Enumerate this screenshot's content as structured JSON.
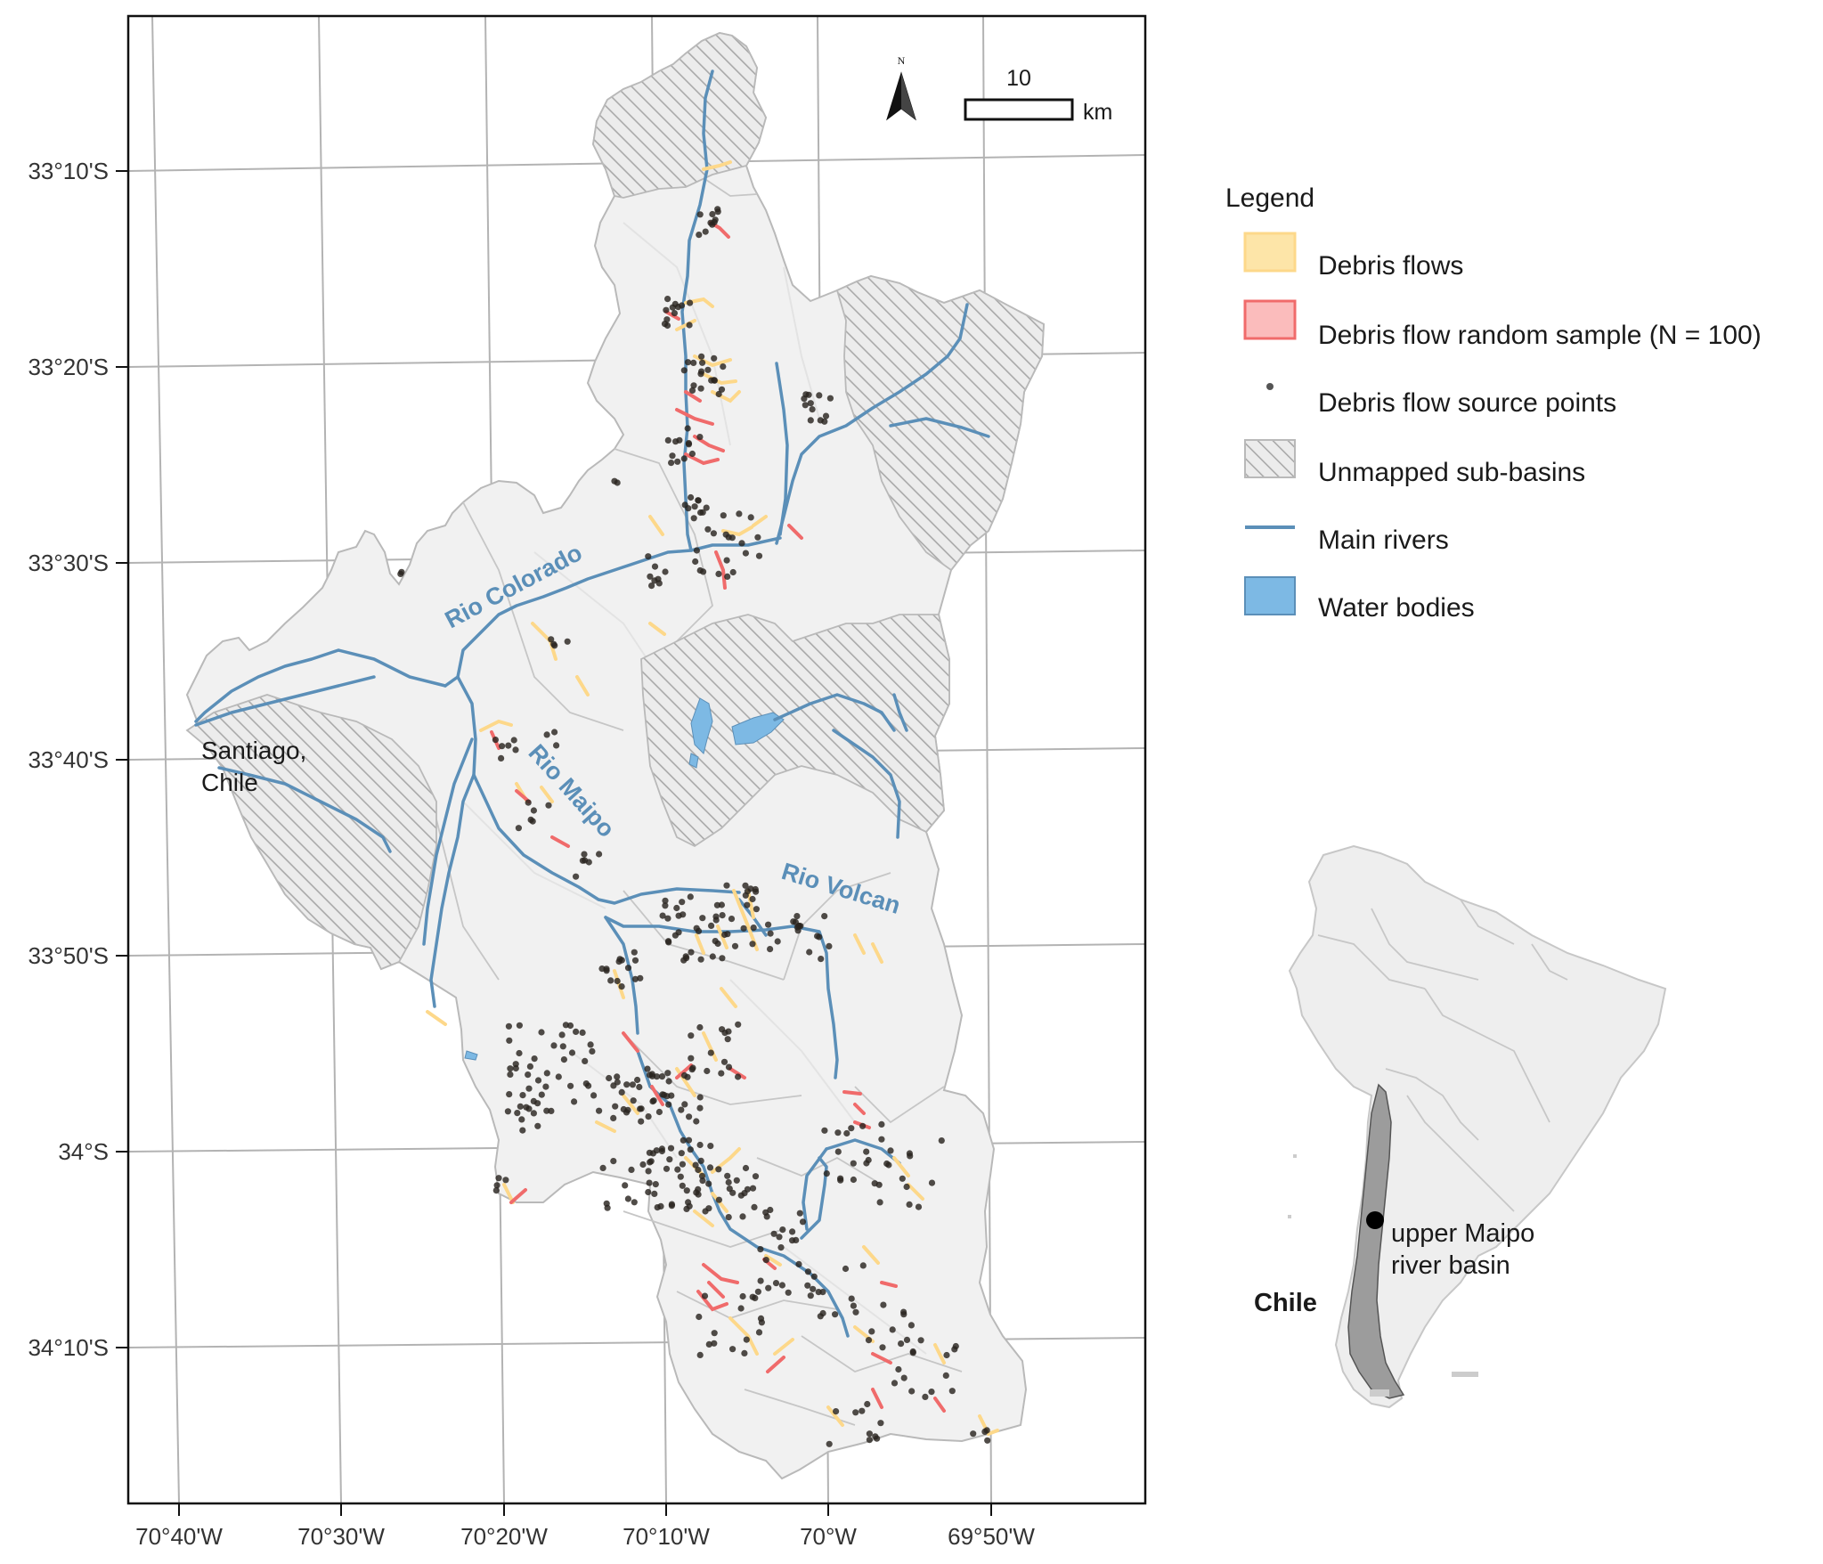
{
  "map": {
    "lat_labels": [
      "33°10'S",
      "33°20'S",
      "33°30'S",
      "33°40'S",
      "33°50'S",
      "34°S",
      "34°10'S"
    ],
    "lon_labels": [
      "70°40'W",
      "70°30'W",
      "70°20'W",
      "70°10'W",
      "70°W",
      "69°50'W"
    ],
    "rivers": {
      "colorado": "Rio Colorado",
      "maipo": "Rio Maipo",
      "volcan": "Rio Volcan"
    },
    "city_line1": "Santiago,",
    "city_line2": "Chile",
    "scale_value": "10",
    "scale_unit": "km",
    "north_letter": "N"
  },
  "legend": {
    "title": "Legend",
    "items": [
      {
        "label": "Debris flows",
        "color": "#fde5a8"
      },
      {
        "label": "Debris flow random sample (N = 100)",
        "color": "#fbbcbc"
      },
      {
        "label": "Debris flow source points",
        "color": "#555555"
      },
      {
        "label": "Unmapped sub-basins",
        "color": "#bbbbbb"
      },
      {
        "label": "Main rivers",
        "color": "#5b8fb8"
      },
      {
        "label": "Water bodies",
        "color": "#7db9e4"
      }
    ]
  },
  "inset": {
    "location_line1": "upper Maipo",
    "location_line2": "river basin",
    "country": "Chile"
  },
  "colors": {
    "river": "#5b8fb8",
    "debris": "#fdd88a",
    "sample": "#f06b6b",
    "point": "#2a2520",
    "basin_fill": "#f1f1f1",
    "basin_stroke": "#b9b9b9",
    "grid": "#b3b3b3"
  }
}
